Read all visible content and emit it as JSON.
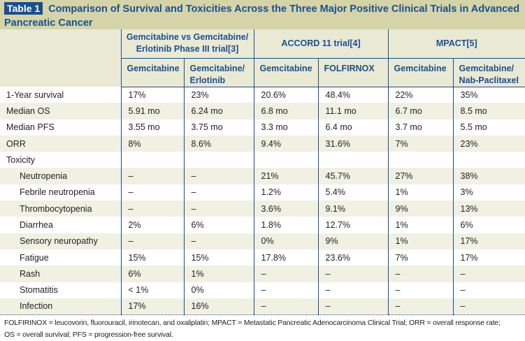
{
  "title": {
    "label": "Table 1",
    "text": "Comparison  of Survival and Toxicities Across the Three Major Positive Clinical Trials in Advanced Pancreatic Cancer"
  },
  "groups": [
    {
      "title": "Gemcitabine vs Gemcitabine/ Erlotinib Phase III trial[3]",
      "arms": [
        "Gemcitabine",
        "Gemcitabine/ Erlotinib"
      ]
    },
    {
      "title": "ACCORD 11 trial[4]",
      "arms": [
        "Gemcitabine",
        "FOLFIRNOX"
      ]
    },
    {
      "title": "MPACT[5]",
      "arms": [
        "Gemcitabine",
        "Gemcitabine/ Nab-Paclitaxel"
      ]
    }
  ],
  "rows": [
    {
      "label": "1-Year survival",
      "values": [
        "17%",
        "23%",
        "20.6%",
        "48.4%",
        "22%",
        "35%"
      ]
    },
    {
      "label": "Median OS",
      "values": [
        "5.91 mo",
        "6.24 mo",
        "6.8 mo",
        "11.1 mo",
        "6.7 mo",
        "8.5 mo"
      ]
    },
    {
      "label": "Median PFS",
      "values": [
        "3.55 mo",
        "3.75 mo",
        "3.3 mo",
        "6.4 mo",
        "3.7 mo",
        "5.5 mo"
      ]
    },
    {
      "label": "ORR",
      "values": [
        "8%",
        "8.6%",
        "9.4%",
        "31.6%",
        "7%",
        "23%"
      ]
    },
    {
      "label": "Toxicity",
      "values": [
        "",
        "",
        "",
        "",
        "",
        ""
      ]
    },
    {
      "label": "Neutropenia",
      "indent": true,
      "values": [
        "–",
        "–",
        "21%",
        "45.7%",
        "27%",
        "38%"
      ]
    },
    {
      "label": "Febrile neutropenia",
      "indent": true,
      "values": [
        "–",
        "–",
        "1.2%",
        "5.4%",
        "1%",
        "3%"
      ]
    },
    {
      "label": "Thrombocytopenia",
      "indent": true,
      "values": [
        "–",
        "–",
        "3.6%",
        "9.1%",
        "9%",
        "13%"
      ]
    },
    {
      "label": "Diarrhea",
      "indent": true,
      "values": [
        "2%",
        "6%",
        "1.8%",
        "12.7%",
        "1%",
        "6%"
      ]
    },
    {
      "label": "Sensory neuropathy",
      "indent": true,
      "values": [
        "–",
        "–",
        "0%",
        "9%",
        "1%",
        "17%"
      ]
    },
    {
      "label": "Fatigue",
      "indent": true,
      "values": [
        "15%",
        "15%",
        "17.8%",
        "23.6%",
        "7%",
        "17%"
      ]
    },
    {
      "label": "Rash",
      "indent": true,
      "values": [
        "6%",
        "1%",
        "–",
        "–",
        "–",
        "–"
      ]
    },
    {
      "label": "Stomatitis",
      "indent": true,
      "values": [
        "< 1%",
        "0%",
        "–",
        "–",
        "–",
        "–"
      ]
    },
    {
      "label": "Infection",
      "indent": true,
      "values": [
        "17%",
        "16%",
        "–",
        "–",
        "–",
        "–"
      ]
    }
  ],
  "footnote": {
    "line1": "FOLFIRINOX = leucovorin, fluorouracil, irinotecan, and oxaliplatin; MPACT = Metastatic Pancreatic Adenocarcinoma Clinical Trial; ORR = overall response rate;",
    "line2": "OS = overall survival; PFS = progression-free survival."
  },
  "colors": {
    "accent": "#1b4f8c",
    "title_band": "#d5d4a9",
    "header_bg": "#e9e9d4",
    "row_shade": "#f0f0e3"
  }
}
